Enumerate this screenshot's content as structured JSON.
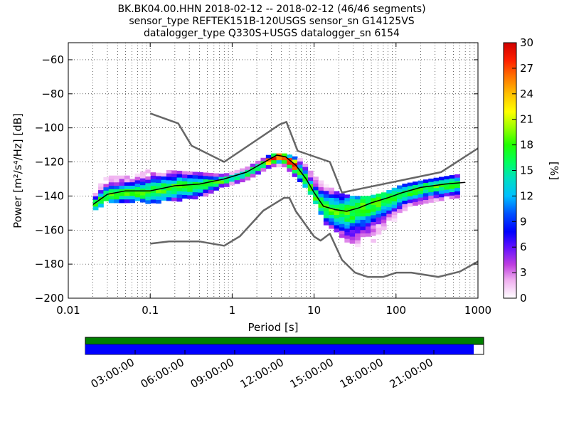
{
  "title": {
    "line1": "BK.BK04.00.HHN   2018-02-12 -- 2018-02-12  (46/46 segments)",
    "line2": "sensor_type REFTEK151B-120USGS sensor_sn G14125VS",
    "line3": "datalogger_type Q330S+USGS datalogger_sn 6154"
  },
  "chart_data": {
    "type": "heatmap",
    "xlabel": "Period [s]",
    "ylabel": "Power [m²/s⁴/Hz] [dB]",
    "x_scale": "log",
    "xlim": [
      0.01,
      1000
    ],
    "ylim": [
      -200,
      -50
    ],
    "x_ticks": [
      {
        "value": 0.01,
        "label": "0.01"
      },
      {
        "value": 0.1,
        "label": "0.1"
      },
      {
        "value": 1,
        "label": "1"
      },
      {
        "value": 10,
        "label": "10"
      },
      {
        "value": 100,
        "label": "100"
      },
      {
        "value": 1000,
        "label": "1000"
      }
    ],
    "y_ticks": [
      {
        "value": -60,
        "label": "−60"
      },
      {
        "value": -80,
        "label": "−80"
      },
      {
        "value": -100,
        "label": "−100"
      },
      {
        "value": -120,
        "label": "−120"
      },
      {
        "value": -140,
        "label": "−140"
      },
      {
        "value": -160,
        "label": "−160"
      },
      {
        "value": -180,
        "label": "−180"
      },
      {
        "value": -200,
        "label": "−200"
      }
    ],
    "grid": "dotted",
    "colorbar": {
      "label": "[%]",
      "range": [
        0,
        30
      ],
      "ticks": [
        {
          "value": 0,
          "label": "0"
        },
        {
          "value": 3,
          "label": "3"
        },
        {
          "value": 6,
          "label": "6"
        },
        {
          "value": 9,
          "label": "9"
        },
        {
          "value": 12,
          "label": "12"
        },
        {
          "value": 15,
          "label": "15"
        },
        {
          "value": 18,
          "label": "18"
        },
        {
          "value": 21,
          "label": "21"
        },
        {
          "value": 24,
          "label": "24"
        },
        {
          "value": 27,
          "label": "27"
        },
        {
          "value": 30,
          "label": "30"
        }
      ]
    },
    "series": [
      {
        "role": "nhnm",
        "color": "#666666",
        "x": [
          0.1,
          0.22,
          0.32,
          0.8,
          3.8,
          4.6,
          6.3,
          15.6,
          21.9,
          354,
          1000
        ],
        "y": [
          -91.5,
          -97.4,
          -110.5,
          -120,
          -98,
          -96.5,
          -113.5,
          -120,
          -138,
          -126,
          -112
        ]
      },
      {
        "role": "nlnm",
        "color": "#666666",
        "x": [
          0.1,
          0.17,
          0.4,
          0.8,
          1.24,
          2.4,
          4.3,
          5.0,
          6.0,
          10,
          12,
          15.6,
          21.9,
          31.6,
          45,
          70,
          101,
          154,
          328,
          600,
          1000
        ],
        "y": [
          -168,
          -166.7,
          -166.7,
          -169.2,
          -163.7,
          -148.6,
          -141.1,
          -141.1,
          -149,
          -163.8,
          -166.2,
          -162.1,
          -177.5,
          -185,
          -187.5,
          -187.5,
          -185,
          -185,
          -187.5,
          -184.4,
          -178.5
        ]
      },
      {
        "role": "mean",
        "color": "#000000",
        "x": [
          0.02,
          0.03,
          0.05,
          0.1,
          0.2,
          0.4,
          0.8,
          1.5,
          2.5,
          3.5,
          4.5,
          6,
          8,
          10,
          13,
          18,
          25,
          35,
          50,
          80,
          120,
          200,
          400,
          700
        ],
        "y": [
          -145,
          -139,
          -137,
          -137,
          -134,
          -133,
          -130,
          -126,
          -120,
          -116,
          -117,
          -122,
          -130,
          -138,
          -146,
          -148,
          -149,
          -147,
          -144,
          -141,
          -138,
          -135,
          -133,
          -132
        ]
      }
    ],
    "density": {
      "description": "probability density bands around mean",
      "envelope": [
        {
          "x": 0.02,
          "low": -148,
          "high": -138
        },
        {
          "x": 0.03,
          "low": -142,
          "high": -128
        },
        {
          "x": 0.06,
          "low": -142,
          "high": -128
        },
        {
          "x": 0.1,
          "low": -143,
          "high": -124
        },
        {
          "x": 0.2,
          "low": -142,
          "high": -125
        },
        {
          "x": 0.4,
          "low": -140,
          "high": -126
        },
        {
          "x": 0.8,
          "low": -133,
          "high": -127
        },
        {
          "x": 1.5,
          "low": -129,
          "high": -123
        },
        {
          "x": 3.0,
          "low": -122,
          "high": -115
        },
        {
          "x": 4.5,
          "low": -123,
          "high": -115
        },
        {
          "x": 7,
          "low": -131,
          "high": -118
        },
        {
          "x": 10,
          "low": -142,
          "high": -128
        },
        {
          "x": 14,
          "low": -155,
          "high": -133
        },
        {
          "x": 20,
          "low": -162,
          "high": -138
        },
        {
          "x": 30,
          "low": -170,
          "high": -140
        },
        {
          "x": 45,
          "low": -170,
          "high": -140
        },
        {
          "x": 70,
          "low": -160,
          "high": -138
        },
        {
          "x": 120,
          "low": -148,
          "high": -133
        },
        {
          "x": 250,
          "low": -142,
          "high": -130
        },
        {
          "x": 600,
          "low": -140,
          "high": -127
        }
      ]
    }
  },
  "timeline": {
    "labels": [
      "03:00:00",
      "06:00:00",
      "09:00:00",
      "12:00:00",
      "15:00:00",
      "18:00:00",
      "21:00:00"
    ],
    "top_bar_color": "#008000",
    "bottom_bar_color": "#0000ff",
    "bottom_fill_fraction": 0.975
  }
}
